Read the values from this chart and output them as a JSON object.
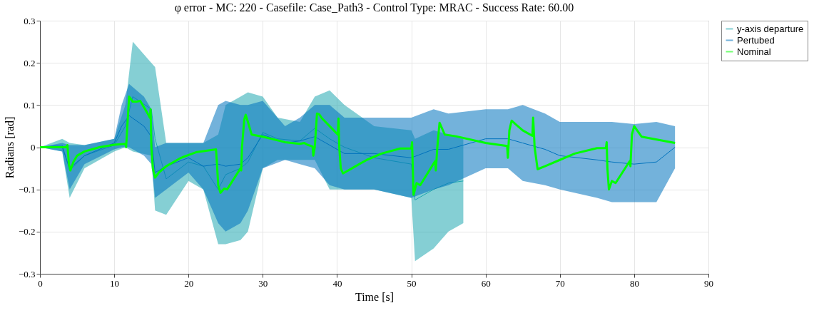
{
  "chart_data": {
    "type": "line",
    "title": "φ error - MC: 220 - Casefile: Case_Path3 - Control Type: MRAC - Success Rate: 60.00",
    "xlabel": "Time [s]",
    "ylabel": "Radians [rad]",
    "xlim": [
      0,
      90
    ],
    "xticks": [
      0,
      10,
      20,
      30,
      40,
      50,
      60,
      70,
      80,
      90
    ],
    "ylim": [
      -0.3,
      0.3
    ],
    "yticks": [
      -0.3,
      -0.2,
      -0.1,
      {
        "value": 0,
        "label": "0"
      },
      0.1,
      0.2,
      0.3
    ],
    "grid": true,
    "legend": "right",
    "marker": "none",
    "line_style": "solid",
    "series": [
      {
        "name": "y-axis departure",
        "color": "#20a8b0",
        "x": [
          0,
          3,
          4,
          6,
          10,
          11.5,
          12.5,
          15,
          15.5,
          17,
          20,
          22,
          24,
          25,
          27,
          28,
          30,
          32,
          35,
          37,
          39,
          41,
          45,
          50,
          50.5,
          53,
          55,
          57
        ],
        "values": [
          0,
          0.005,
          -0.055,
          -0.02,
          0.005,
          0.05,
          0.12,
          0.09,
          0.02,
          -0.075,
          -0.035,
          -0.045,
          -0.1,
          -0.065,
          -0.05,
          -0.035,
          0.035,
          0.02,
          0.015,
          0.045,
          0.02,
          0,
          -0.025,
          -0.04,
          -0.125,
          -0.1,
          -0.085,
          -0.08
        ],
        "upper": [
          0,
          0.02,
          0.01,
          0.005,
          0.02,
          0.1,
          0.25,
          0.2,
          0.19,
          0.01,
          0.01,
          0.01,
          0.03,
          0.1,
          0.12,
          0.13,
          0.12,
          0.07,
          0.06,
          0.12,
          0.135,
          0.1,
          0.05,
          0.04,
          0.02,
          0.04,
          0.03,
          0.02
        ],
        "lower": [
          0,
          -0.01,
          -0.12,
          -0.05,
          -0.01,
          0,
          -0.01,
          -0.02,
          -0.15,
          -0.16,
          -0.08,
          -0.1,
          -0.23,
          -0.23,
          -0.22,
          -0.2,
          -0.05,
          -0.03,
          -0.03,
          -0.03,
          -0.1,
          -0.1,
          -0.1,
          -0.12,
          -0.27,
          -0.24,
          -0.2,
          -0.18
        ]
      },
      {
        "name": "Pertubed",
        "color": "#0072bd",
        "x": [
          0,
          3,
          4,
          6,
          10,
          11,
          12,
          14,
          15,
          15.5,
          17,
          20,
          22,
          24,
          25,
          27,
          28,
          30,
          33,
          35,
          37,
          39,
          41,
          45,
          50,
          53,
          55,
          60,
          63,
          65,
          68,
          70,
          75,
          77,
          80,
          83,
          85.5
        ],
        "values": [
          0,
          0,
          -0.05,
          -0.02,
          0.01,
          0.05,
          0.075,
          0.05,
          0.025,
          -0.06,
          -0.045,
          -0.025,
          -0.045,
          -0.04,
          -0.045,
          -0.04,
          -0.025,
          0.03,
          0.01,
          0.015,
          0.025,
          0.005,
          -0.015,
          -0.015,
          -0.025,
          -0.005,
          -0.005,
          0.02,
          0.02,
          0.01,
          -0.005,
          -0.02,
          -0.03,
          -0.035,
          -0.04,
          -0.035,
          0
        ],
        "upper": [
          0,
          0.01,
          0.005,
          0.005,
          0.02,
          0.1,
          0.15,
          0.12,
          0.09,
          0,
          0.01,
          0.01,
          0.01,
          0.1,
          0.11,
          0.1,
          0.1,
          0.11,
          0.05,
          0.07,
          0.1,
          0.1,
          0.07,
          0.07,
          0.07,
          0.09,
          0.08,
          0.09,
          0.09,
          0.1,
          0.08,
          0.06,
          0.06,
          0.06,
          0.055,
          0.06,
          0.05
        ],
        "lower": [
          0,
          -0.01,
          -0.1,
          -0.04,
          -0.005,
          0,
          0,
          -0.02,
          -0.04,
          -0.12,
          -0.1,
          -0.06,
          -0.1,
          -0.18,
          -0.2,
          -0.18,
          -0.15,
          -0.05,
          -0.03,
          -0.04,
          -0.05,
          -0.09,
          -0.1,
          -0.1,
          -0.12,
          -0.1,
          -0.09,
          -0.05,
          -0.05,
          -0.08,
          -0.09,
          -0.1,
          -0.12,
          -0.13,
          -0.13,
          -0.13,
          -0.05
        ]
      },
      {
        "name": "Nominal",
        "color": "#00ff00",
        "x": [
          0,
          3.5,
          3.7,
          3.9,
          4.1,
          4.5,
          5,
          6,
          8,
          10,
          11.5,
          11.6,
          11.7,
          12,
          12.5,
          13,
          13.5,
          14.5,
          14.8,
          14.9,
          15,
          15.2,
          15.5,
          16,
          17,
          19,
          21,
          23.7,
          23.8,
          24,
          24.3,
          24.8,
          25.2,
          27,
          27.1,
          27.2,
          27.5,
          27.7,
          28,
          28.5,
          30,
          33,
          35,
          35.6,
          36,
          36.7,
          36.8,
          37,
          37.3,
          37.6,
          38,
          39,
          40.1,
          40.2,
          40.3,
          40.5,
          40.8,
          42,
          44,
          46,
          48.5,
          50,
          50.1,
          50.2,
          50.3,
          50.7,
          51.2,
          53.2,
          53.3,
          53.5,
          53.8,
          54,
          54.5,
          56,
          60,
          62.9,
          63,
          63.2,
          63.5,
          64,
          65,
          66.3,
          66.4,
          66.6,
          67,
          68,
          70,
          72,
          75,
          76.2,
          76.3,
          76.4,
          76.6,
          77,
          77.5,
          79.4,
          79.5,
          79.7,
          80,
          80.4,
          81,
          85.5
        ],
        "values": [
          0,
          0,
          0.005,
          -0.04,
          -0.055,
          -0.035,
          -0.02,
          -0.01,
          0,
          0.006,
          0.008,
          0,
          0.03,
          0.12,
          0.108,
          0.108,
          0.11,
          0.08,
          0.07,
          0.09,
          0,
          -0.05,
          -0.072,
          -0.06,
          -0.045,
          -0.025,
          -0.012,
          -0.005,
          -0.03,
          -0.09,
          -0.108,
          -0.098,
          -0.1,
          -0.05,
          -0.055,
          0,
          0.065,
          0.077,
          0.06,
          0.03,
          0.025,
          0.012,
          0.008,
          0.01,
          0.006,
          0.002,
          -0.02,
          0,
          0.08,
          0.078,
          0.068,
          0.05,
          0.03,
          0.068,
          0,
          -0.05,
          -0.062,
          -0.05,
          -0.03,
          -0.015,
          -0.003,
          -0.003,
          0.012,
          -0.05,
          -0.113,
          -0.085,
          -0.09,
          -0.033,
          -0.055,
          0,
          0.058,
          0.05,
          0.03,
          0.026,
          0.01,
          0.003,
          -0.025,
          0.04,
          0.063,
          0.055,
          0.04,
          0.027,
          0.07,
          0,
          -0.052,
          -0.045,
          -0.03,
          -0.015,
          -0.002,
          -0.002,
          0.012,
          -0.05,
          -0.1,
          -0.08,
          -0.085,
          -0.033,
          -0.045,
          0.03,
          0.05,
          0.04,
          0.025,
          0.01
        ]
      }
    ]
  }
}
